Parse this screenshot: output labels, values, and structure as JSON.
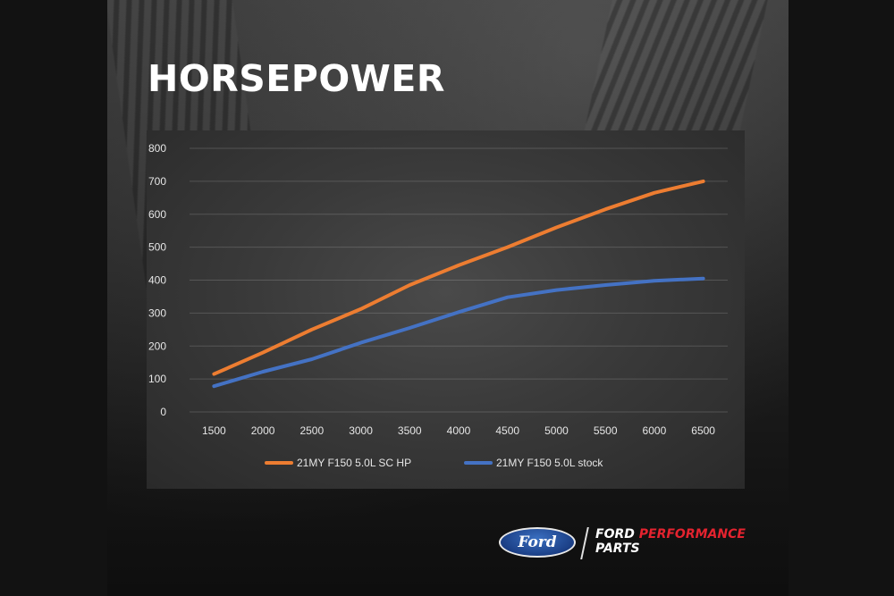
{
  "poster": {
    "title": "HORSEPOWER"
  },
  "brand": {
    "ford_logo_text": "Ford",
    "line1_ford": "FORD",
    "line1_performance": "PERFORMANCE",
    "line2": "PARTS",
    "accent_color": "#e4232f",
    "oval_color": "#1b3f86"
  },
  "chart_data": {
    "type": "line",
    "title": "",
    "xlabel": "",
    "ylabel": "",
    "categories": [
      "1500",
      "2000",
      "2500",
      "3000",
      "3500",
      "4000",
      "4500",
      "5000",
      "5500",
      "6000",
      "6500"
    ],
    "ylim": [
      0,
      800
    ],
    "yticks": [
      "0",
      "100",
      "200",
      "300",
      "400",
      "500",
      "600",
      "700",
      "800"
    ],
    "grid": true,
    "legend_position": "bottom",
    "series": [
      {
        "name": "21MY F150 5.0L SC HP",
        "color": "#ed7d31",
        "values": [
          115,
          180,
          250,
          312,
          385,
          445,
          500,
          560,
          615,
          665,
          700
        ]
      },
      {
        "name": "21MY F150 5.0L stock",
        "color": "#4472c4",
        "values": [
          78,
          122,
          160,
          210,
          255,
          303,
          348,
          370,
          385,
          398,
          405
        ]
      }
    ]
  }
}
